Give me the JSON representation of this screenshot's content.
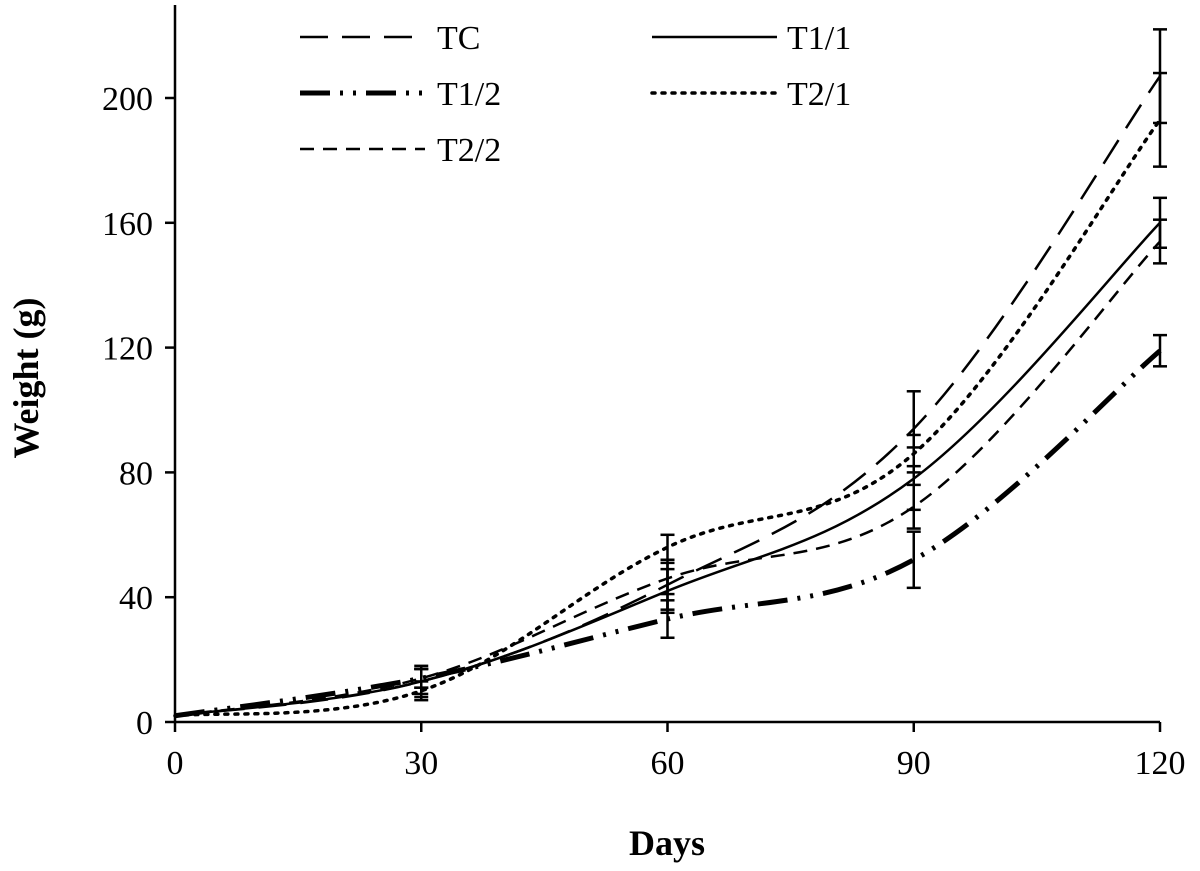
{
  "chart_data": {
    "type": "line",
    "title": "",
    "xlabel": "Days",
    "ylabel": "Weight (g)",
    "x": [
      0,
      30,
      60,
      90,
      120
    ],
    "xlim": [
      0,
      120
    ],
    "ylim": [
      0,
      200
    ],
    "xticks": [
      "0",
      "30",
      "60",
      "90",
      "120"
    ],
    "yticks": [
      "0",
      "40",
      "80",
      "120",
      "160",
      "200"
    ],
    "grid": false,
    "legend_position": "top",
    "series": [
      {
        "name": "TC",
        "values": [
          2,
          13,
          44,
          94,
          207
        ],
        "errors": [
          0,
          4,
          8,
          12,
          15
        ],
        "dash": "long-dash",
        "color": "#000000"
      },
      {
        "name": "T1/1",
        "values": [
          2,
          13,
          42,
          78,
          160
        ],
        "errors": [
          0,
          5,
          7,
          10,
          8
        ],
        "dash": "solid",
        "color": "#000000"
      },
      {
        "name": "T1/2",
        "values": [
          2,
          14,
          33,
          52,
          119
        ],
        "errors": [
          0,
          3,
          6,
          9,
          5
        ],
        "dash": "dash-dot-dot",
        "color": "#000000"
      },
      {
        "name": "T2/1",
        "values": [
          2,
          10,
          56,
          86,
          193
        ],
        "errors": [
          0,
          3,
          4,
          6,
          15
        ],
        "dash": "dotted",
        "color": "#000000"
      },
      {
        "name": "T2/2",
        "values": [
          2,
          14,
          46,
          69,
          154
        ],
        "errors": [
          0,
          3,
          5,
          7,
          7
        ],
        "dash": "short-dash",
        "color": "#000000"
      }
    ]
  }
}
